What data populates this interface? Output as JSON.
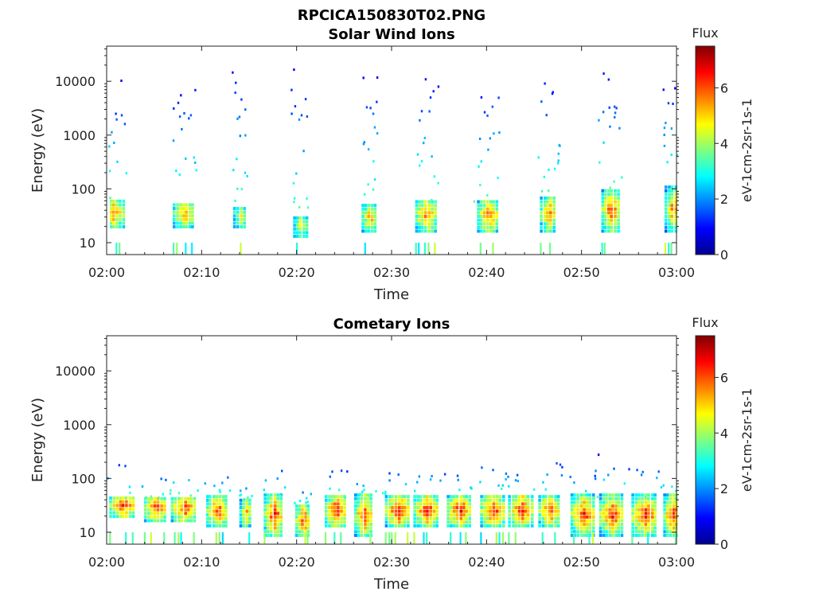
{
  "figure_title": "RPCICA150830T02.PNG",
  "chart_data": [
    {
      "type": "heatmap",
      "title": "Solar Wind Ions",
      "xlabel": "Time",
      "ylabel": "Energy (eV)",
      "yscale": "log",
      "ylim": [
        6,
        45000
      ],
      "xlim": [
        "02:00",
        "03:00"
      ],
      "xticks": [
        "02:00",
        "02:10",
        "02:20",
        "02:30",
        "02:40",
        "02:50",
        "03:00"
      ],
      "yticks": [
        "10",
        "100",
        "1000",
        "10000"
      ],
      "colorbar": {
        "title": "Flux",
        "label": "eV-1cm-2sr-1s-1",
        "ticks": [
          "0",
          "2",
          "4",
          "6"
        ],
        "range": [
          0,
          7.5
        ]
      },
      "bursts": [
        {
          "t_min": 0.5,
          "e_lo": 18,
          "e_hi": 60,
          "peak": 6.5,
          "width_min": 2.5,
          "spread_max": 11000
        },
        {
          "t_min": 8.0,
          "e_lo": 18,
          "e_hi": 50,
          "peak": 6.4,
          "width_min": 2.2,
          "spread_max": 10000
        },
        {
          "t_min": 14.0,
          "e_lo": 18,
          "e_hi": 45,
          "peak": 5.6,
          "width_min": 1.4,
          "spread_max": 16000
        },
        {
          "t_min": 20.3,
          "e_lo": 12,
          "e_hi": 30,
          "peak": 5.5,
          "width_min": 1.5,
          "spread_max": 18000
        },
        {
          "t_min": 27.5,
          "e_lo": 15,
          "e_hi": 50,
          "peak": 6.2,
          "width_min": 1.5,
          "spread_max": 15000
        },
        {
          "t_min": 33.5,
          "e_lo": 15,
          "e_hi": 60,
          "peak": 6.6,
          "width_min": 2.2,
          "spread_max": 12000
        },
        {
          "t_min": 40.0,
          "e_lo": 15,
          "e_hi": 60,
          "peak": 6.8,
          "width_min": 2.2,
          "spread_max": 11000
        },
        {
          "t_min": 46.5,
          "e_lo": 15,
          "e_hi": 70,
          "peak": 6.6,
          "width_min": 1.8,
          "spread_max": 13000
        },
        {
          "t_min": 53.0,
          "e_lo": 15,
          "e_hi": 90,
          "peak": 7.0,
          "width_min": 2.0,
          "spread_max": 17000
        },
        {
          "t_min": 59.5,
          "e_lo": 15,
          "e_hi": 100,
          "peak": 6.6,
          "width_min": 1.6,
          "spread_max": 10000
        }
      ]
    },
    {
      "type": "heatmap",
      "title": "Cometary Ions",
      "xlabel": "Time",
      "ylabel": "Energy (eV)",
      "yscale": "log",
      "ylim": [
        6,
        45000
      ],
      "xlim": [
        "02:00",
        "03:00"
      ],
      "xticks": [
        "02:00",
        "02:10",
        "02:20",
        "02:30",
        "02:40",
        "02:50",
        "03:00"
      ],
      "yticks": [
        "10",
        "100",
        "1000",
        "10000"
      ],
      "colorbar": {
        "title": "Flux",
        "label": "eV-1cm-2sr-1s-1",
        "ticks": [
          "0",
          "2",
          "4",
          "6"
        ],
        "range": [
          0,
          7.5
        ]
      },
      "bursts": [
        {
          "t_min": 1.5,
          "e_lo": 18,
          "e_hi": 45,
          "peak": 7.0,
          "width_min": 2.5,
          "spread_max": 200
        },
        {
          "t_min": 5.0,
          "e_lo": 15,
          "e_hi": 45,
          "peak": 7.0,
          "width_min": 2.2,
          "spread_max": 120
        },
        {
          "t_min": 8.0,
          "e_lo": 15,
          "e_hi": 45,
          "peak": 7.0,
          "width_min": 2.5,
          "spread_max": 200
        },
        {
          "t_min": 11.5,
          "e_lo": 12,
          "e_hi": 45,
          "peak": 7.0,
          "width_min": 2.2,
          "spread_max": 110
        },
        {
          "t_min": 14.5,
          "e_lo": 12,
          "e_hi": 40,
          "peak": 6.0,
          "width_min": 1.2,
          "spread_max": 70
        },
        {
          "t_min": 17.5,
          "e_lo": 8,
          "e_hi": 45,
          "peak": 7.2,
          "width_min": 2.0,
          "spread_max": 150
        },
        {
          "t_min": 20.5,
          "e_lo": 8,
          "e_hi": 30,
          "peak": 7.0,
          "width_min": 1.5,
          "spread_max": 60
        },
        {
          "t_min": 24.0,
          "e_lo": 12,
          "e_hi": 45,
          "peak": 7.3,
          "width_min": 2.2,
          "spread_max": 150
        },
        {
          "t_min": 27.0,
          "e_lo": 8,
          "e_hi": 45,
          "peak": 7.2,
          "width_min": 2.0,
          "spread_max": 120
        },
        {
          "t_min": 30.5,
          "e_lo": 12,
          "e_hi": 45,
          "peak": 7.3,
          "width_min": 2.5,
          "spread_max": 150
        },
        {
          "t_min": 33.5,
          "e_lo": 12,
          "e_hi": 45,
          "peak": 7.2,
          "width_min": 2.5,
          "spread_max": 150
        },
        {
          "t_min": 37.0,
          "e_lo": 12,
          "e_hi": 45,
          "peak": 7.3,
          "width_min": 2.5,
          "spread_max": 140
        },
        {
          "t_min": 40.5,
          "e_lo": 12,
          "e_hi": 45,
          "peak": 7.2,
          "width_min": 2.5,
          "spread_max": 200
        },
        {
          "t_min": 43.5,
          "e_lo": 12,
          "e_hi": 45,
          "peak": 7.3,
          "width_min": 2.5,
          "spread_max": 150
        },
        {
          "t_min": 46.5,
          "e_lo": 12,
          "e_hi": 45,
          "peak": 7.0,
          "width_min": 2.2,
          "spread_max": 250
        },
        {
          "t_min": 50.0,
          "e_lo": 8,
          "e_hi": 45,
          "peak": 7.2,
          "width_min": 2.5,
          "spread_max": 120
        },
        {
          "t_min": 53.0,
          "e_lo": 8,
          "e_hi": 45,
          "peak": 7.3,
          "width_min": 2.5,
          "spread_max": 300
        },
        {
          "t_min": 56.5,
          "e_lo": 8,
          "e_hi": 45,
          "peak": 7.3,
          "width_min": 2.5,
          "spread_max": 200
        },
        {
          "t_min": 59.5,
          "e_lo": 8,
          "e_hi": 45,
          "peak": 7.2,
          "width_min": 2.0,
          "spread_max": 200
        }
      ]
    }
  ]
}
